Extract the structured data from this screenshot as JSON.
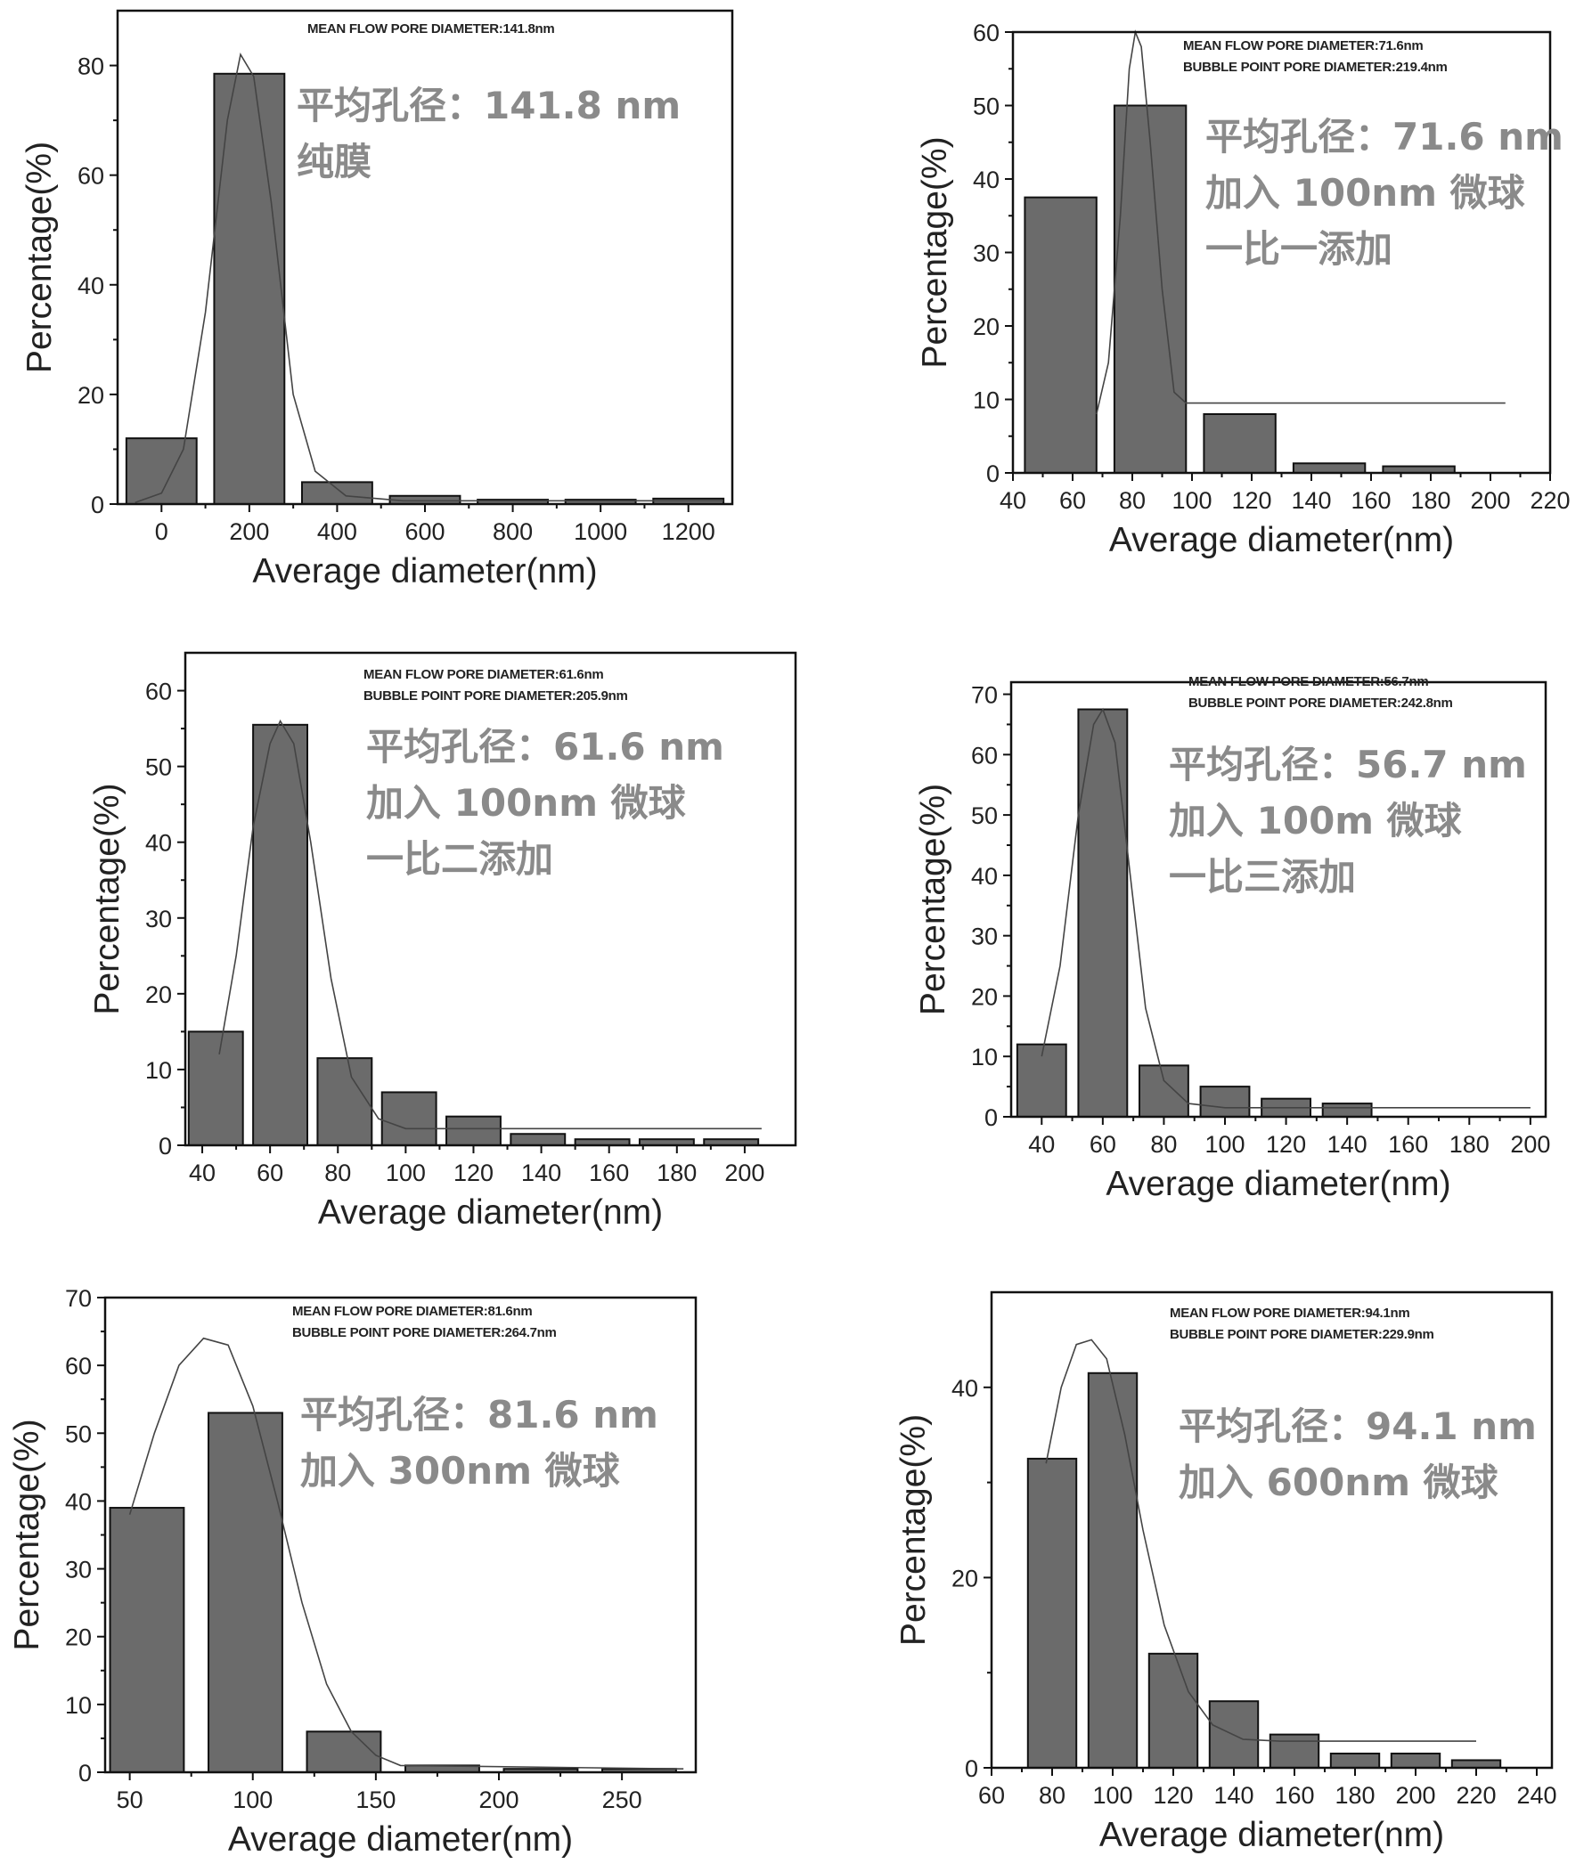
{
  "chart_data": [
    {
      "type": "bar",
      "xlabel": "Average diameter(nm)",
      "ylabel": "Percentage(%)",
      "info_lines": [
        "MEAN FLOW PORE DIAMETER:141.8nm"
      ],
      "annotation_lines": [
        "平均孔径：141.8 nm",
        "纯膜"
      ],
      "xlim": [
        -100,
        1300
      ],
      "ylim": [
        0,
        90
      ],
      "xticks": [
        0,
        200,
        400,
        600,
        800,
        1000,
        1200
      ],
      "yticks": [
        0,
        20,
        40,
        60,
        80
      ],
      "bins": [
        [
          -80,
          80
        ],
        [
          120,
          280
        ],
        [
          320,
          480
        ],
        [
          520,
          680
        ],
        [
          720,
          880
        ],
        [
          920,
          1080
        ],
        [
          1120,
          1280
        ]
      ],
      "values": [
        12,
        78.5,
        4,
        1.5,
        0.8,
        0.8,
        1
      ],
      "fit": [
        [
          -60,
          0.3
        ],
        [
          0,
          2
        ],
        [
          50,
          10
        ],
        [
          100,
          35
        ],
        [
          150,
          70
        ],
        [
          180,
          82
        ],
        [
          210,
          78
        ],
        [
          250,
          55
        ],
        [
          300,
          20
        ],
        [
          350,
          6
        ],
        [
          420,
          1.5
        ],
        [
          550,
          0.6
        ],
        [
          1280,
          0.6
        ]
      ]
    },
    {
      "type": "bar",
      "xlabel": "Average diameter(nm)",
      "ylabel": "Percentage(%)",
      "info_lines": [
        "MEAN FLOW PORE DIAMETER:71.6nm",
        "BUBBLE POINT PORE DIAMETER:219.4nm"
      ],
      "annotation_lines": [
        "平均孔径：71.6 nm",
        "加入 100nm 微球",
        "一比一添加"
      ],
      "xlim": [
        40,
        220
      ],
      "ylim": [
        0,
        60
      ],
      "xticks": [
        40,
        60,
        80,
        100,
        120,
        140,
        160,
        180,
        200,
        220
      ],
      "yticks": [
        0,
        10,
        20,
        30,
        40,
        50,
        60
      ],
      "bins": [
        [
          44,
          68
        ],
        [
          74,
          98
        ],
        [
          104,
          128
        ],
        [
          134,
          158
        ],
        [
          164,
          188
        ]
      ],
      "values": [
        37.5,
        50,
        8,
        1.3,
        0.9
      ],
      "fit": [
        [
          68,
          8
        ],
        [
          72,
          15
        ],
        [
          76,
          35
        ],
        [
          79,
          55
        ],
        [
          81,
          60
        ],
        [
          83,
          58
        ],
        [
          86,
          45
        ],
        [
          90,
          25
        ],
        [
          94,
          11
        ],
        [
          98,
          9.5
        ],
        [
          205,
          9.5
        ]
      ]
    },
    {
      "type": "bar",
      "xlabel": "Average diameter(nm)",
      "ylabel": "Percentage(%)",
      "info_lines": [
        "MEAN FLOW PORE DIAMETER:61.6nm",
        "BUBBLE POINT PORE DIAMETER:205.9nm"
      ],
      "annotation_lines": [
        "平均孔径：61.6 nm",
        "加入 100nm 微球",
        "一比二添加"
      ],
      "xlim": [
        35,
        215
      ],
      "ylim": [
        0,
        65
      ],
      "xticks": [
        40,
        60,
        80,
        100,
        120,
        140,
        160,
        180,
        200
      ],
      "yticks": [
        0,
        10,
        20,
        30,
        40,
        50,
        60
      ],
      "bins": [
        [
          36,
          52
        ],
        [
          55,
          71
        ],
        [
          74,
          90
        ],
        [
          93,
          109
        ],
        [
          112,
          128
        ],
        [
          131,
          147
        ],
        [
          150,
          166
        ],
        [
          169,
          185
        ],
        [
          188,
          204
        ]
      ],
      "values": [
        15,
        55.5,
        11.5,
        7,
        3.8,
        1.5,
        0.8,
        0.8,
        0.8
      ],
      "fit": [
        [
          45,
          12
        ],
        [
          50,
          25
        ],
        [
          55,
          42
        ],
        [
          60,
          53
        ],
        [
          63,
          56
        ],
        [
          67,
          53
        ],
        [
          72,
          40
        ],
        [
          78,
          22
        ],
        [
          84,
          9
        ],
        [
          92,
          3.5
        ],
        [
          100,
          2.2
        ],
        [
          205,
          2.2
        ]
      ]
    },
    {
      "type": "bar",
      "xlabel": "Average diameter(nm)",
      "ylabel": "Percentage(%)",
      "info_lines": [
        "MEAN FLOW PORE DIAMETER:56.7nm",
        "BUBBLE POINT PORE DIAMETER:242.8nm"
      ],
      "annotation_lines": [
        "平均孔径：56.7 nm",
        "加入 100m 微球",
        "一比三添加"
      ],
      "xlim": [
        30,
        205
      ],
      "ylim": [
        0,
        72
      ],
      "xticks": [
        40,
        60,
        80,
        100,
        120,
        140,
        160,
        180,
        200
      ],
      "yticks": [
        0,
        10,
        20,
        30,
        40,
        50,
        60,
        70
      ],
      "bins": [
        [
          32,
          48
        ],
        [
          52,
          68
        ],
        [
          72,
          88
        ],
        [
          92,
          108
        ],
        [
          112,
          128
        ],
        [
          132,
          148
        ]
      ],
      "values": [
        12,
        67.5,
        8.5,
        5,
        3,
        2.2
      ],
      "fit": [
        [
          40,
          10
        ],
        [
          46,
          25
        ],
        [
          52,
          50
        ],
        [
          57,
          65
        ],
        [
          60,
          67.5
        ],
        [
          64,
          62
        ],
        [
          69,
          40
        ],
        [
          74,
          18
        ],
        [
          80,
          6
        ],
        [
          88,
          2.2
        ],
        [
          100,
          1.5
        ],
        [
          200,
          1.5
        ]
      ]
    },
    {
      "type": "bar",
      "xlabel": "Average diameter(nm)",
      "ylabel": "Percentage(%)",
      "info_lines": [
        "MEAN FLOW PORE DIAMETER:81.6nm",
        "BUBBLE POINT PORE DIAMETER:264.7nm"
      ],
      "annotation_lines": [
        "平均孔径：81.6 nm",
        "加入 300nm 微球"
      ],
      "xlim": [
        40,
        280
      ],
      "ylim": [
        0,
        70
      ],
      "xticks": [
        50,
        100,
        150,
        200,
        250
      ],
      "yticks": [
        0,
        10,
        20,
        30,
        40,
        50,
        60,
        70
      ],
      "bins": [
        [
          42,
          72
        ],
        [
          82,
          112
        ],
        [
          122,
          152
        ],
        [
          162,
          192
        ],
        [
          202,
          232
        ],
        [
          242,
          272
        ]
      ],
      "values": [
        39,
        53,
        6,
        1,
        0.5,
        0.5
      ],
      "fit": [
        [
          50,
          38
        ],
        [
          60,
          50
        ],
        [
          70,
          60
        ],
        [
          80,
          64
        ],
        [
          90,
          63
        ],
        [
          100,
          54
        ],
        [
          110,
          40
        ],
        [
          120,
          25
        ],
        [
          130,
          13
        ],
        [
          140,
          6
        ],
        [
          150,
          2.5
        ],
        [
          160,
          1
        ],
        [
          275,
          0.5
        ]
      ]
    },
    {
      "type": "bar",
      "xlabel": "Average diameter(nm)",
      "ylabel": "Percentage(%)",
      "info_lines": [
        "MEAN FLOW PORE DIAMETER:94.1nm",
        "BUBBLE POINT PORE DIAMETER:229.9nm"
      ],
      "annotation_lines": [
        "平均孔径：94.1 nm",
        "加入 600nm 微球"
      ],
      "xlim": [
        60,
        245
      ],
      "ylim": [
        0,
        50
      ],
      "xticks": [
        60,
        80,
        100,
        120,
        140,
        160,
        180,
        200,
        220,
        240
      ],
      "yticks": [
        0,
        20,
        40
      ],
      "bins": [
        [
          72,
          88
        ],
        [
          92,
          108
        ],
        [
          112,
          128
        ],
        [
          132,
          148
        ],
        [
          152,
          168
        ],
        [
          172,
          188
        ],
        [
          192,
          208
        ],
        [
          212,
          228
        ]
      ],
      "values": [
        32.5,
        41.5,
        12,
        7,
        3.5,
        1.5,
        1.5,
        0.8
      ],
      "fit": [
        [
          78,
          32
        ],
        [
          83,
          40
        ],
        [
          88,
          44.5
        ],
        [
          93,
          45
        ],
        [
          98,
          43
        ],
        [
          104,
          35
        ],
        [
          110,
          25
        ],
        [
          117,
          15
        ],
        [
          125,
          8
        ],
        [
          133,
          4.5
        ],
        [
          143,
          3
        ],
        [
          155,
          2.8
        ],
        [
          220,
          2.8
        ]
      ]
    }
  ]
}
